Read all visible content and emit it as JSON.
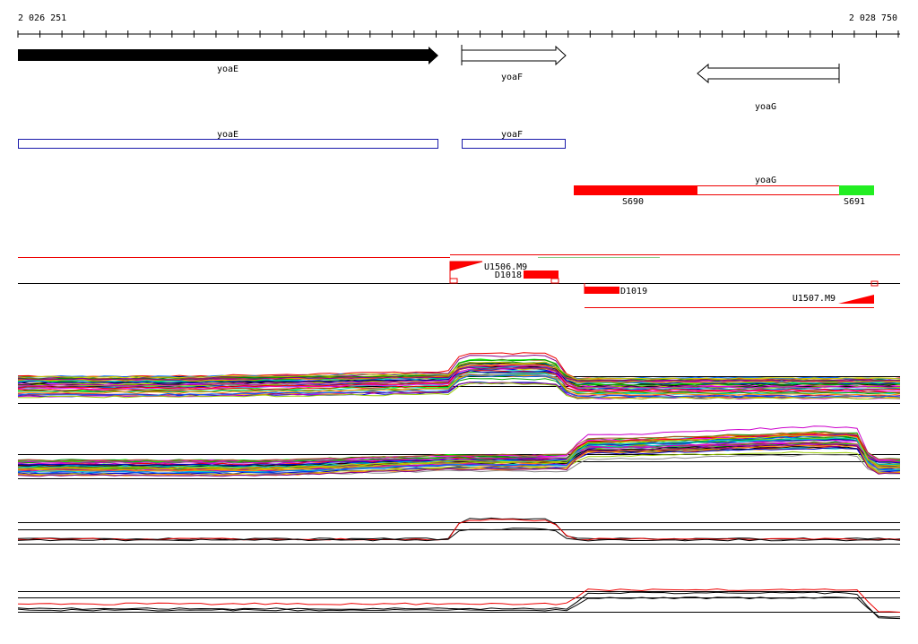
{
  "axis": {
    "start": "2 026 251",
    "end": "2 028 750"
  },
  "genes": [
    {
      "label": "yoaE"
    },
    {
      "label": "yoaF"
    },
    {
      "label": "yoaG"
    }
  ],
  "cds": [
    {
      "label": "yoaE"
    },
    {
      "label": "yoaF"
    }
  ],
  "operon": {
    "label": "yoaG",
    "segments": [
      "S690",
      "S691"
    ]
  },
  "transcripts": [
    "U1506.M9",
    "D1018",
    "D1019",
    "U1507.M9"
  ]
}
